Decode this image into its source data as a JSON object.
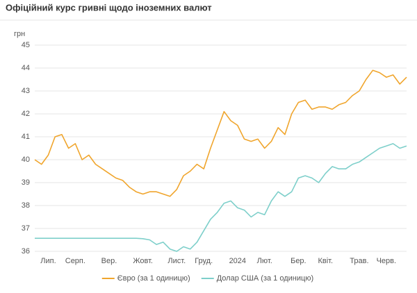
{
  "chart_data": {
    "type": "line",
    "title": "Офіційний курс гривні щодо іноземних валют",
    "y_label": "грн",
    "categories": [
      null,
      null,
      "Лип.",
      null,
      null,
      null,
      "Серп.",
      null,
      null,
      null,
      null,
      "Вер.",
      null,
      null,
      null,
      null,
      "Жовт.",
      null,
      null,
      null,
      null,
      "Лист.",
      null,
      null,
      null,
      "Груд.",
      null,
      null,
      null,
      null,
      "2024",
      null,
      null,
      null,
      "Лют.",
      null,
      null,
      null,
      null,
      "Бер.",
      null,
      null,
      null,
      "Квіт.",
      null,
      null,
      null,
      null,
      "Трав.",
      null,
      null,
      null,
      "Черв.",
      null,
      null,
      null
    ],
    "series": [
      {
        "name": "Євро (за 1 одиницю)",
        "color": "#f0a52c",
        "values": [
          40.0,
          39.8,
          40.2,
          41.0,
          41.1,
          40.5,
          40.7,
          40.0,
          40.2,
          39.8,
          39.6,
          39.4,
          39.2,
          39.1,
          38.8,
          38.6,
          38.5,
          38.6,
          38.6,
          38.5,
          38.4,
          38.7,
          39.3,
          39.5,
          39.8,
          39.6,
          40.5,
          41.3,
          42.1,
          41.7,
          41.5,
          40.9,
          40.8,
          40.9,
          40.5,
          40.8,
          41.4,
          41.1,
          42.0,
          42.5,
          42.6,
          42.2,
          42.3,
          42.3,
          42.2,
          42.4,
          42.5,
          42.8,
          43.0,
          43.5,
          43.9,
          43.8,
          43.6,
          43.7,
          43.3,
          43.6
        ]
      },
      {
        "name": "Долар США (за 1 одиницю)",
        "color": "#7dcfca",
        "values": [
          36.57,
          36.57,
          36.57,
          36.57,
          36.57,
          36.57,
          36.57,
          36.57,
          36.57,
          36.57,
          36.57,
          36.57,
          36.57,
          36.57,
          36.57,
          36.57,
          36.55,
          36.5,
          36.3,
          36.4,
          36.1,
          36.0,
          36.2,
          36.1,
          36.4,
          36.9,
          37.4,
          37.7,
          38.1,
          38.2,
          37.9,
          37.8,
          37.5,
          37.7,
          37.6,
          38.2,
          38.6,
          38.4,
          38.6,
          39.2,
          39.3,
          39.2,
          39.0,
          39.4,
          39.7,
          39.6,
          39.6,
          39.8,
          39.9,
          40.1,
          40.3,
          40.5,
          40.6,
          40.7,
          40.5,
          40.6
        ]
      }
    ],
    "ylim": [
      36,
      45
    ],
    "yticks": [
      36,
      37,
      38,
      39,
      40,
      41,
      42,
      43,
      44,
      45
    ],
    "grid": true,
    "legend": "bottom"
  }
}
